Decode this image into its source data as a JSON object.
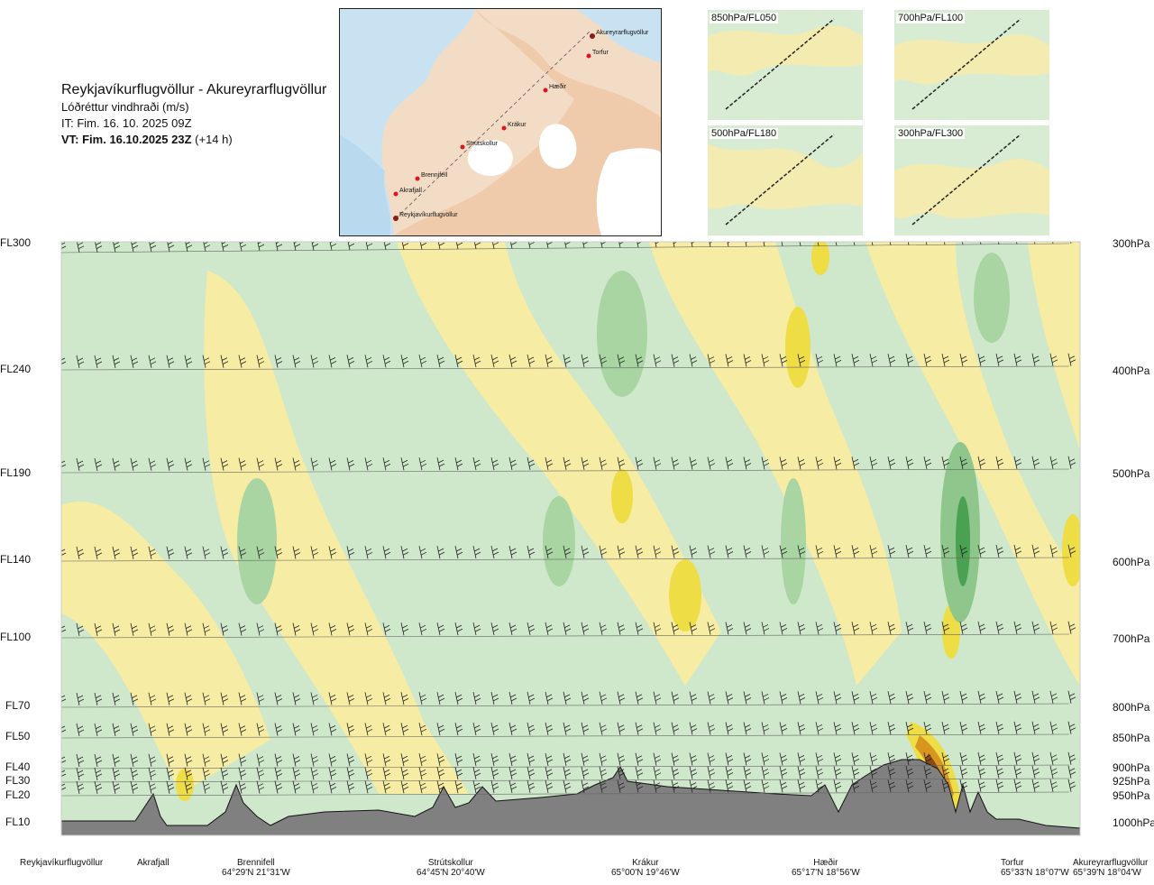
{
  "header": {
    "title": "Reykjavíkurflugvöllur - Akureyrarflugvöllur",
    "subtitle": "Lóðréttur vindhraði (m/s)",
    "it": "IT: Fim. 16. 10. 2025 09Z",
    "vt_bold": "VT: Fim. 16.10.2025 23Z",
    "vt_extra": "(+14 h)"
  },
  "map": {
    "stations": [
      "Akureyrarflugvöllur",
      "Torfur",
      "Hæðir",
      "Krákur",
      "Strútskollur",
      "Brennifell",
      "Akrafjall",
      "Reykjavíkurflugvöllur"
    ]
  },
  "thumbs": [
    {
      "label": "850hPa/FL050"
    },
    {
      "label": "700hPa/FL100"
    },
    {
      "label": "500hPa/FL180"
    },
    {
      "label": "300hPa/FL300"
    }
  ],
  "chart_data": {
    "type": "heatmap",
    "title": "Reykjavíkurflugvöllur - Akureyrarflugvöllur",
    "quantity": "Lóðréttur vindhraði (m/s)",
    "left_axis_flight_levels": [
      "FL300",
      "FL240",
      "FL190",
      "FL140",
      "FL100",
      "FL70",
      "FL50",
      "FL40",
      "FL30",
      "FL20",
      "FL10"
    ],
    "right_axis_pressure": [
      "300hPa",
      "400hPa",
      "500hPa",
      "600hPa",
      "700hPa",
      "800hPa",
      "850hPa",
      "900hPa",
      "925hPa",
      "950hPa",
      "1000hPa"
    ],
    "pressure_levels_hpa": [
      300,
      400,
      500,
      600,
      700,
      800,
      850,
      900,
      925,
      950,
      1000
    ],
    "x_stations": [
      {
        "name": "Reykjavíkurflugvöllur",
        "coord": ""
      },
      {
        "name": "Akrafjall",
        "coord": ""
      },
      {
        "name": "Brennifell",
        "coord": "64°29'N 21°31'W"
      },
      {
        "name": "Strútskollur",
        "coord": "64°45'N 20°40'W"
      },
      {
        "name": "Krákur",
        "coord": "65°00'N 19°46'W"
      },
      {
        "name": "Hæðir",
        "coord": "65°17'N 18°56'W"
      },
      {
        "name": "Torfur",
        "coord": "65°33'N 18°07'W"
      },
      {
        "name": "Akureyrarflugvöllur",
        "coord": "65°39'N 18°04'W"
      }
    ],
    "colors": {
      "downdraft_weak": "#e3f1de",
      "downdraft_mod": "#c7e4c2",
      "downdraft_strong": "#8fc68c",
      "downdraft_extreme": "#4aa151",
      "updraft_weak": "#fdf7c9",
      "updraft_mod": "#f6eca3",
      "updraft_strong": "#eedd45",
      "updraft_extreme": "#d8951f",
      "updraft_max": "#8a4a14",
      "terrain": "#808080"
    }
  }
}
